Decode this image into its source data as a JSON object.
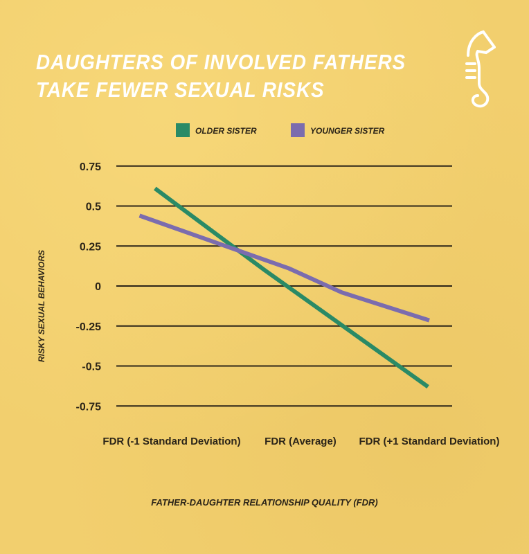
{
  "title_lines": [
    "DAUGHTERS OF INVOLVED FATHERS",
    "TAKE FEWER SEXUAL RISKS"
  ],
  "logo": {
    "icon": "seahorse-icon",
    "color": "#ffffff"
  },
  "chart_data": {
    "type": "line",
    "title": "DAUGHTERS OF INVOLVED FATHERS TAKE FEWER SEXUAL RISKS",
    "xlabel": "FATHER-DAUGHTER RELATIONSHIP QUALITY (FDR)",
    "ylabel": "RISKY SEXUAL BEHAVIORS",
    "ylim": [
      -0.75,
      0.75
    ],
    "yticks": [
      0.75,
      0.5,
      0.25,
      0,
      -0.25,
      -0.5,
      -0.75
    ],
    "ytick_labels": [
      "0.75",
      "0.5",
      "0.25",
      "0",
      "-0.25",
      "-0.5",
      "-0.75"
    ],
    "xticks": [
      -1,
      0,
      1
    ],
    "xtick_labels": [
      "FDR (-1 Standard Deviation)",
      "FDR (Average)",
      "FDR (+1 Standard Deviation)"
    ],
    "grid": true,
    "legend_placement": "top",
    "series": [
      {
        "name": "OLDER SISTER",
        "color": "#2a8a66",
        "points": [
          [
            -1.13,
            0.61
          ],
          [
            -0.28,
            0.1
          ],
          [
            0.99,
            -0.63
          ]
        ]
      },
      {
        "name": "YOUNGER SISTER",
        "color": "#7b6cae",
        "points": [
          [
            -1.25,
            0.44
          ],
          [
            -0.09,
            0.11
          ],
          [
            0.32,
            -0.04
          ],
          [
            1.0,
            -0.215
          ]
        ]
      }
    ]
  }
}
